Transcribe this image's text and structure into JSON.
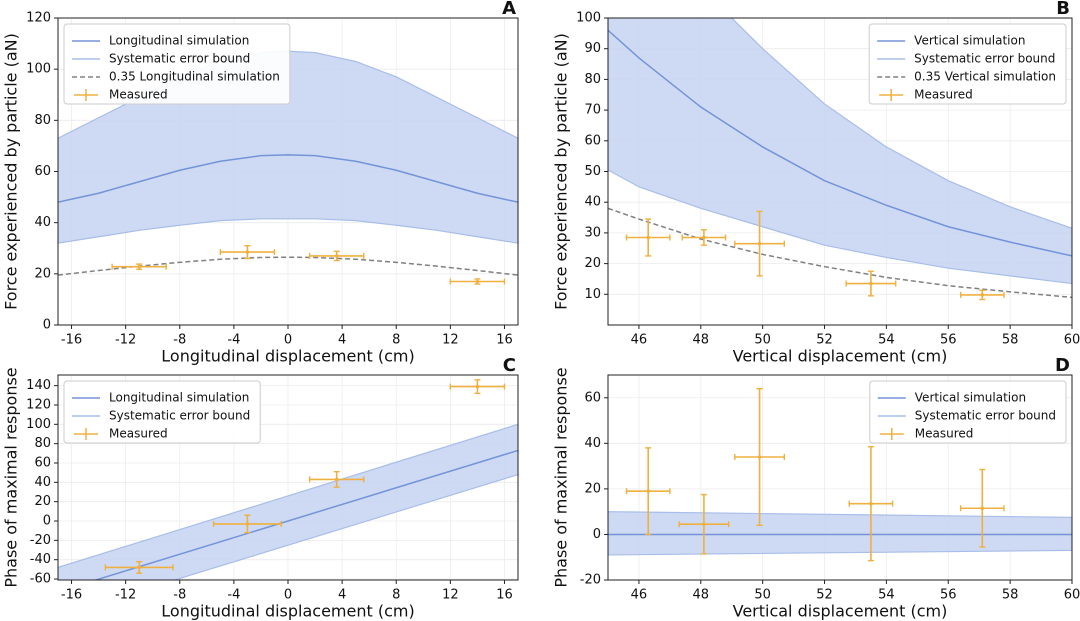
{
  "chart_data": [
    {
      "type": "line",
      "panel": "A",
      "legend": "upper left",
      "grid": true,
      "xlabel": "Longitudinal displacement (cm)",
      "ylabel": "Force experienced by particle (aN)",
      "xlim": [
        -17,
        17
      ],
      "ylim": [
        0,
        120
      ],
      "xticks": [
        -16,
        -12,
        -8,
        -4,
        0,
        4,
        8,
        12,
        16
      ],
      "yticks": [
        0,
        20,
        40,
        60,
        80,
        100,
        120
      ],
      "x": [
        -17,
        -14,
        -11,
        -8,
        -5,
        -2,
        0,
        2,
        5,
        8,
        11,
        14,
        17
      ],
      "series": [
        {
          "name": "Longitudinal simulation",
          "color": "#7394d8",
          "style": "solid",
          "values": [
            48,
            51.5,
            56,
            60.5,
            64,
            66.2,
            66.5,
            66.2,
            64,
            60.5,
            56,
            51.5,
            48
          ]
        },
        {
          "name": "0.35 Longitudinal simulation",
          "color": "#808080",
          "style": "dashed",
          "values": [
            19.5,
            21.3,
            23,
            24.5,
            25.7,
            26.4,
            26.5,
            26.4,
            25.7,
            24.5,
            23,
            21.3,
            19.5
          ]
        }
      ],
      "band": {
        "name": "Systematic error bound",
        "color": "#a8bde9",
        "upper": [
          73,
          81,
          89,
          97,
          103,
          106.5,
          107,
          106.5,
          103,
          97,
          89,
          81,
          73
        ],
        "lower": [
          32,
          34.5,
          37,
          39,
          40.8,
          41.5,
          41.5,
          41.5,
          40.8,
          39,
          37,
          34.5,
          32
        ]
      },
      "measured": {
        "name": "Measured",
        "color": "#f0b040",
        "x": [
          -11,
          -3,
          3.6,
          14
        ],
        "y": [
          22.8,
          28.5,
          27,
          17
        ],
        "xerr": [
          2,
          2,
          2,
          2
        ],
        "yerr": [
          1,
          2.5,
          1.8,
          1
        ]
      }
    },
    {
      "type": "line",
      "panel": "B",
      "legend": "upper right",
      "grid": true,
      "xlabel": "Vertical displacement (cm)",
      "ylabel": "Force experienced by particle (aN)",
      "xlim": [
        45,
        60
      ],
      "ylim": [
        0,
        100
      ],
      "xticks": [
        46,
        48,
        50,
        52,
        54,
        56,
        58,
        60
      ],
      "yticks": [
        10,
        20,
        30,
        40,
        50,
        60,
        70,
        80,
        90,
        100
      ],
      "x": [
        45,
        46,
        48,
        50,
        52,
        54,
        56,
        58,
        60
      ],
      "series": [
        {
          "name": "Vertical simulation",
          "color": "#7394d8",
          "style": "solid",
          "values": [
            96,
            87,
            71,
            58,
            47,
            39,
            32,
            27,
            22.5
          ]
        },
        {
          "name": "0.35 Vertical simulation",
          "color": "#808080",
          "style": "dashed",
          "values": [
            38,
            34.5,
            28,
            23,
            19,
            15.5,
            12.8,
            10.8,
            9
          ]
        }
      ],
      "band": {
        "name": "Systematic error bound",
        "color": "#a8bde9",
        "upper": [
          150,
          135,
          110,
          90,
          72,
          58,
          47,
          38.5,
          31.5
        ],
        "lower": [
          50.5,
          45,
          38,
          32,
          26,
          22,
          18.5,
          16,
          13.5
        ]
      },
      "measured": {
        "name": "Measured",
        "color": "#f0b040",
        "x": [
          46.3,
          48.1,
          49.9,
          53.5,
          57.1
        ],
        "y": [
          28.5,
          28.5,
          26.5,
          13.5,
          9.8
        ],
        "xerr": [
          0.7,
          0.7,
          0.8,
          0.8,
          0.7
        ],
        "yerr": [
          6,
          2.5,
          10.5,
          4,
          1.5
        ]
      }
    },
    {
      "type": "line",
      "panel": "C",
      "legend": "upper left",
      "grid": true,
      "xlabel": "Longitudinal displacement (cm)",
      "ylabel": "Phase of maximal response",
      "xlim": [
        -17,
        17
      ],
      "ylim": [
        -61,
        151
      ],
      "xticks": [
        -16,
        -12,
        -8,
        -4,
        0,
        4,
        8,
        12,
        16
      ],
      "yticks": [
        -60,
        -40,
        -20,
        0,
        20,
        40,
        60,
        80,
        100,
        120,
        140
      ],
      "x": [
        -17,
        17
      ],
      "series": [
        {
          "name": "Longitudinal simulation",
          "color": "#7394d8",
          "style": "solid",
          "values": [
            -73,
            73
          ]
        }
      ],
      "band": {
        "name": "Systematic error bound",
        "color": "#a8bde9",
        "upper": [
          -48,
          100
        ],
        "lower": [
          -98,
          48
        ]
      },
      "measured": {
        "name": "Measured",
        "color": "#f0b040",
        "x": [
          -11,
          -3,
          3.6,
          14
        ],
        "y": [
          -48,
          -3,
          43,
          139
        ],
        "xerr": [
          2.5,
          2.5,
          2,
          2
        ],
        "yerr": [
          6,
          9,
          8,
          7
        ]
      }
    },
    {
      "type": "line",
      "panel": "D",
      "legend": "upper right",
      "grid": true,
      "xlabel": "Vertical displacement (cm)",
      "ylabel": "Phase of maximal response",
      "xlim": [
        45,
        60
      ],
      "ylim": [
        -20,
        70
      ],
      "xticks": [
        46,
        48,
        50,
        52,
        54,
        56,
        58,
        60
      ],
      "yticks": [
        -20,
        0,
        20,
        40,
        60
      ],
      "x": [
        45,
        60
      ],
      "series": [
        {
          "name": "Vertical simulation",
          "color": "#7394d8",
          "style": "solid",
          "values": [
            0,
            0
          ]
        }
      ],
      "band": {
        "name": "Systematic error bound",
        "color": "#a8bde9",
        "upper": [
          10,
          7.5
        ],
        "lower": [
          -9,
          -7
        ]
      },
      "measured": {
        "name": "Measured",
        "color": "#f0b040",
        "x": [
          46.3,
          48.1,
          49.9,
          53.5,
          57.1
        ],
        "y": [
          19,
          4.5,
          34,
          13.5,
          11.5
        ],
        "xerr": [
          0.7,
          0.8,
          0.8,
          0.7,
          0.7
        ],
        "yerr": [
          19,
          13,
          30,
          25,
          17
        ]
      }
    }
  ]
}
